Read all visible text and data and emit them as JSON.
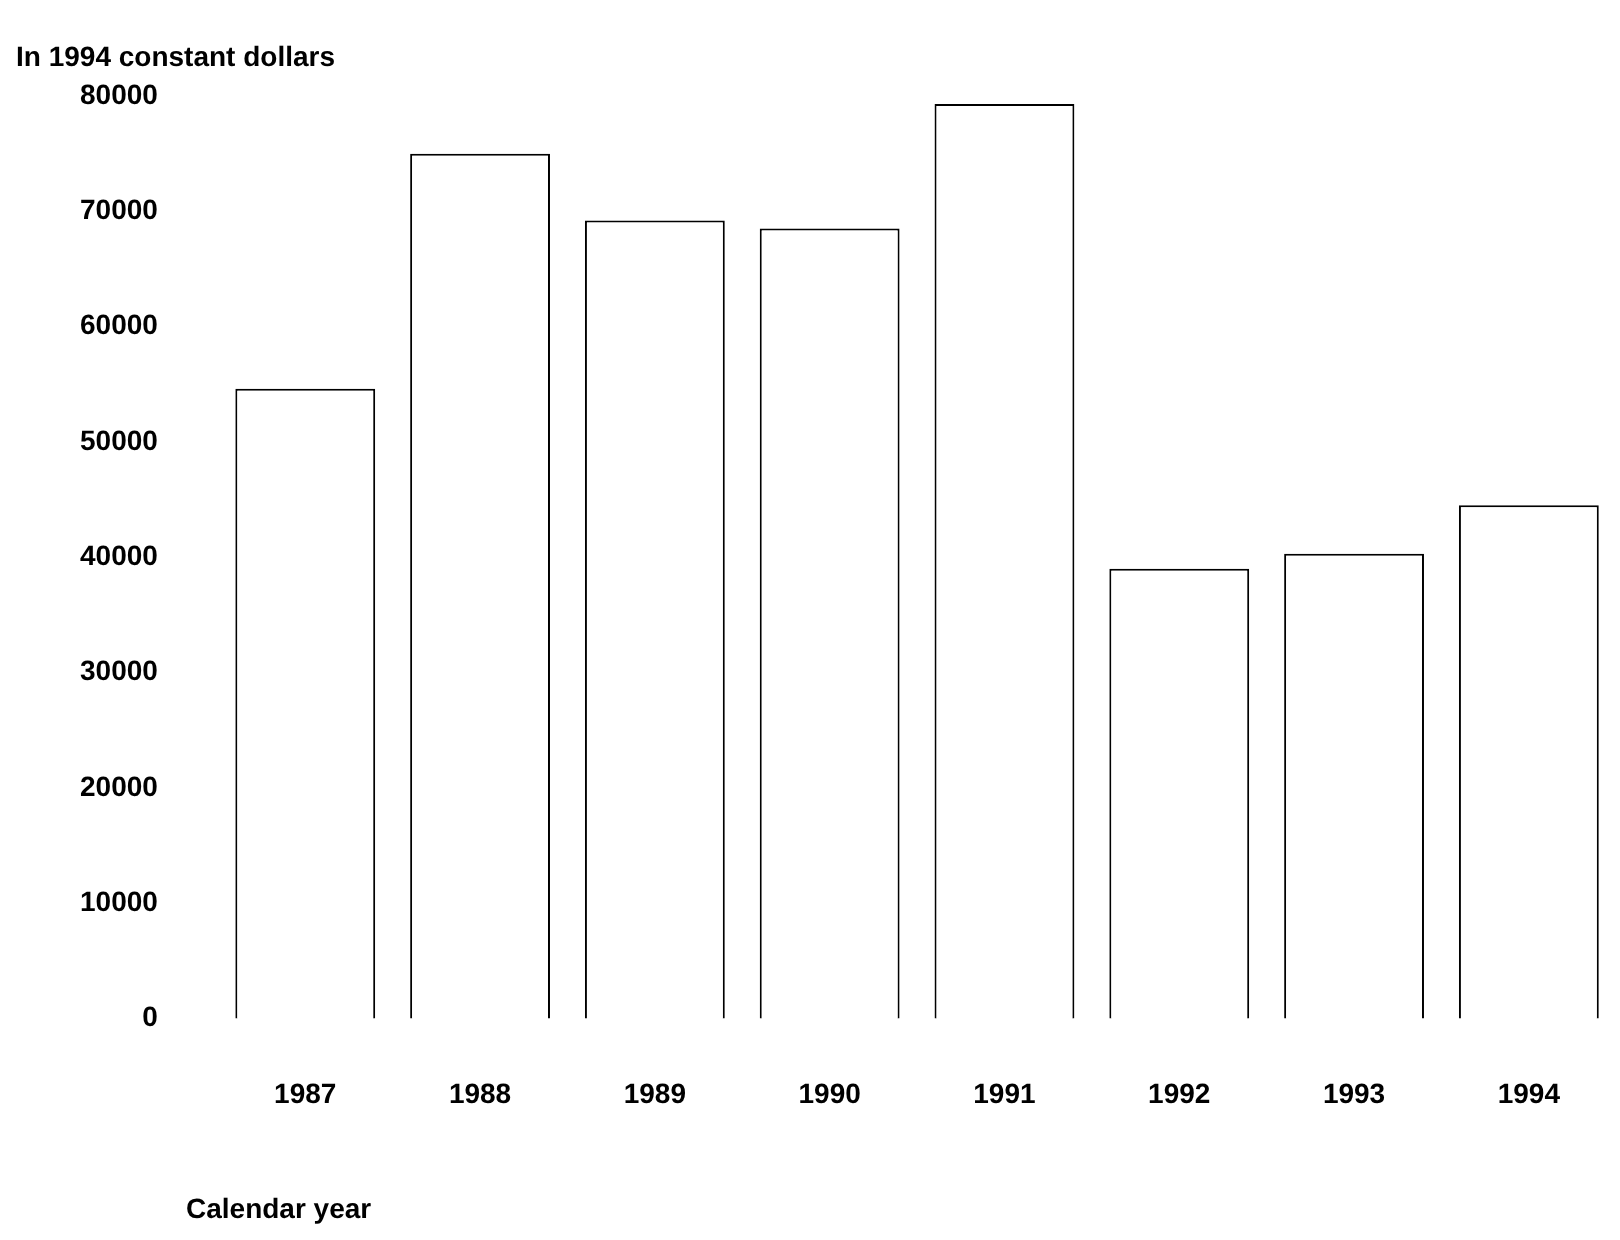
{
  "chart_data": {
    "type": "bar",
    "ylabel": "In 1994 constant dollars",
    "xlabel": "Calendar year",
    "categories": [
      "1987",
      "1988",
      "1989",
      "1990",
      "1991",
      "1992",
      "1993",
      "1994"
    ],
    "values": [
      54600,
      75000,
      69200,
      68500,
      79300,
      39000,
      40300,
      44500
    ],
    "color": "#ffffff",
    "ylim": [
      0,
      80000
    ],
    "yticks": [
      0,
      10000,
      20000,
      30000,
      40000,
      50000,
      60000,
      70000,
      80000
    ],
    "grid": false,
    "legend": false
  }
}
